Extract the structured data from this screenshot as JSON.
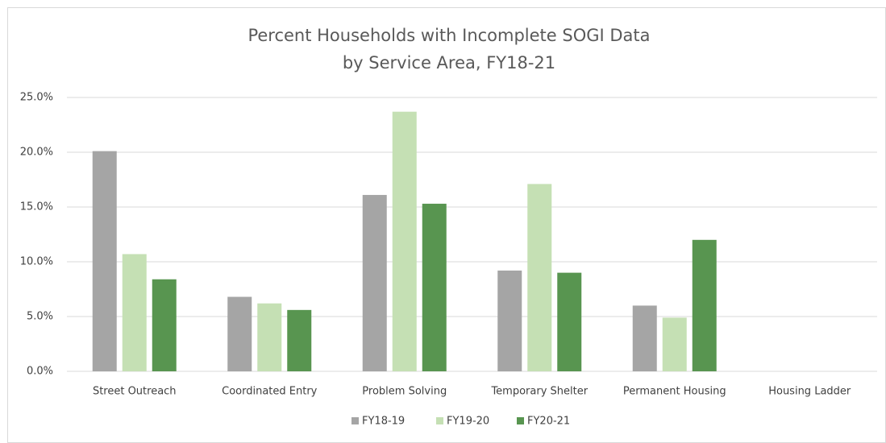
{
  "chart_data": {
    "type": "bar",
    "title": "Percent Households with Incomplete SOGI Data",
    "subtitle": "by Service Area, FY18-21",
    "categories": [
      "Street Outreach",
      "Coordinated Entry",
      "Problem Solving",
      "Temporary Shelter",
      "Permanent Housing",
      "Housing Ladder"
    ],
    "series": [
      {
        "name": "FY18-19",
        "color": "#a5a5a5",
        "values": [
          20.1,
          6.8,
          16.1,
          9.2,
          6.0,
          null
        ]
      },
      {
        "name": "FY19-20",
        "color": "#c5e0b4",
        "values": [
          10.7,
          6.2,
          23.7,
          17.1,
          4.9,
          null
        ]
      },
      {
        "name": "FY20-21",
        "color": "#589550",
        "values": [
          8.4,
          5.6,
          15.3,
          9.0,
          12.0,
          null
        ]
      }
    ],
    "ylim": [
      0,
      25
    ],
    "yticks": [
      {
        "value": 0,
        "label": "0.0%"
      },
      {
        "value": 5,
        "label": "5.0%"
      },
      {
        "value": 10,
        "label": "10.0%"
      },
      {
        "value": 15,
        "label": "15.0%"
      },
      {
        "value": 20,
        "label": "20.0%"
      },
      {
        "value": 25,
        "label": "25.0%"
      }
    ],
    "grid": true,
    "legend": "bottom"
  }
}
